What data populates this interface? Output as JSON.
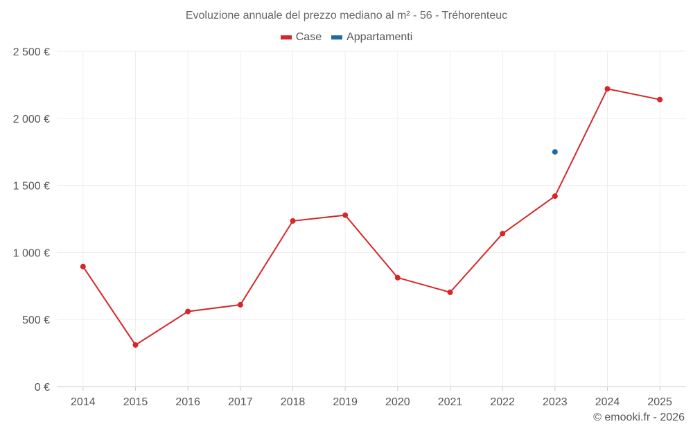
{
  "chart_data": {
    "type": "line",
    "title": "Evoluzione annuale del prezzo mediano al m² - 56 - Tréhorenteuc",
    "categories": [
      "2014",
      "2015",
      "2016",
      "2017",
      "2018",
      "2019",
      "2020",
      "2021",
      "2022",
      "2023",
      "2024",
      "2025"
    ],
    "y_ticks": [
      "0 €",
      "500 €",
      "1 000 €",
      "1 500 €",
      "2 000 €",
      "2 500 €"
    ],
    "ylim": [
      0,
      2500
    ],
    "grid": true,
    "legend_position": "top-center",
    "series": [
      {
        "name": "Case",
        "color": "#d62728",
        "values": [
          895,
          310,
          560,
          610,
          1235,
          1278,
          812,
          703,
          1140,
          1420,
          2220,
          2140
        ]
      },
      {
        "name": "Appartamenti",
        "color": "#1f6aa5",
        "values": [
          null,
          null,
          null,
          null,
          null,
          null,
          null,
          null,
          null,
          1750,
          null,
          null
        ]
      }
    ]
  },
  "credit": "© emooki.fr - 2026"
}
